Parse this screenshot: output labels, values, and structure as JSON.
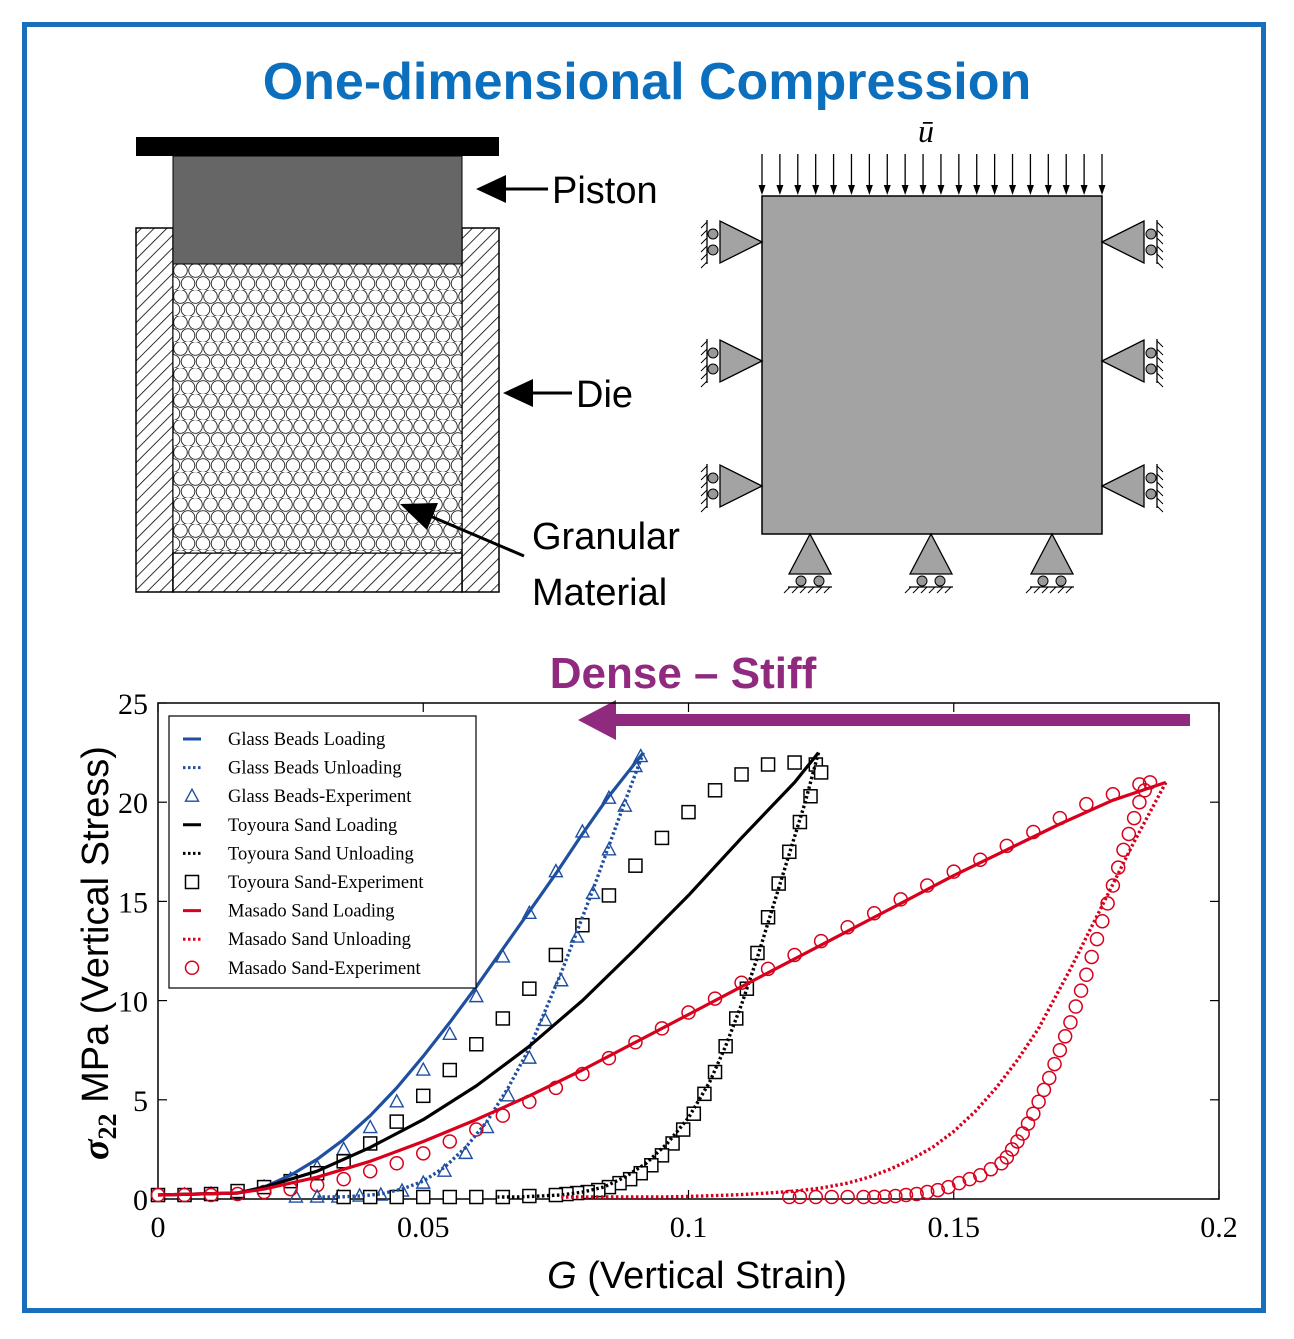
{
  "title": "One-dimensional Compression",
  "diagram_left": {
    "labels": {
      "piston": "Piston",
      "die": "Die",
      "granular_1": "Granular",
      "granular_2": "Material"
    }
  },
  "diagram_right": {
    "load_symbol": "ū"
  },
  "annotation": {
    "text": "Dense – Stiff",
    "color": "#8f2a7f"
  },
  "colors": {
    "blue": "#1f4fa0",
    "black": "#000000",
    "red": "#d8001c"
  },
  "chart_data": {
    "type": "line",
    "xlabel_symbol": "G",
    "xlabel_text": "(Vertical Strain)",
    "ylabel_symbol": "σ",
    "ylabel_subscript": "22",
    "ylabel_text": "MPa (Vertical Stress)",
    "xlim": [
      0,
      0.2
    ],
    "ylim": [
      0,
      25
    ],
    "xticks": [
      0,
      0.05,
      0.1,
      0.15,
      0.2
    ],
    "xtick_labels": [
      "0",
      "0.05",
      "0.1",
      "0.15",
      "0.2"
    ],
    "yticks": [
      0,
      5,
      10,
      15,
      20,
      25
    ],
    "ytick_labels": [
      "0",
      "5",
      "10",
      "15",
      "20",
      "25"
    ],
    "legend": [
      {
        "label": "Glass Beads Loading",
        "color": "#1f4fa0",
        "style": "solid"
      },
      {
        "label": "Glass Beads Unloading",
        "color": "#1f4fa0",
        "style": "dotted"
      },
      {
        "label": "Glass Beads-Experiment",
        "color": "#1f4fa0",
        "style": "triangle"
      },
      {
        "label": "Toyoura Sand Loading",
        "color": "#000000",
        "style": "solid"
      },
      {
        "label": "Toyoura Sand Unloading",
        "color": "#000000",
        "style": "dotted"
      },
      {
        "label": "Toyoura Sand-Experiment",
        "color": "#000000",
        "style": "square"
      },
      {
        "label": "Masado Sand Loading",
        "color": "#d8001c",
        "style": "solid"
      },
      {
        "label": "Masado Sand Unloading",
        "color": "#d8001c",
        "style": "dotted"
      },
      {
        "label": "Masado Sand-Experiment",
        "color": "#d8001c",
        "style": "circle"
      }
    ],
    "series": [
      {
        "name": "Glass Beads Loading",
        "color": "#1f4fa0",
        "style": "solid",
        "x": [
          0.0,
          0.015,
          0.02,
          0.025,
          0.03,
          0.035,
          0.04,
          0.045,
          0.05,
          0.055,
          0.06,
          0.065,
          0.07,
          0.075,
          0.08,
          0.085,
          0.0915
        ],
        "y": [
          0.2,
          0.3,
          0.6,
          1.2,
          2.0,
          3.0,
          4.2,
          5.6,
          7.2,
          8.9,
          10.7,
          12.6,
          14.5,
          16.4,
          18.4,
          20.3,
          22.5
        ]
      },
      {
        "name": "Glass Beads Unloading",
        "color": "#1f4fa0",
        "style": "dotted",
        "x": [
          0.0915,
          0.088,
          0.085,
          0.082,
          0.079,
          0.076,
          0.073,
          0.07,
          0.066,
          0.062,
          0.058,
          0.054,
          0.05,
          0.046,
          0.042,
          0.038,
          0.034,
          0.03
        ],
        "y": [
          22.5,
          20.0,
          17.8,
          15.6,
          13.5,
          11.4,
          9.5,
          7.6,
          5.6,
          3.9,
          2.6,
          1.6,
          0.9,
          0.5,
          0.25,
          0.15,
          0.1,
          0.1
        ]
      },
      {
        "name": "Glass Beads-Experiment",
        "color": "#1f4fa0",
        "style": "triangle",
        "x": [
          0.0,
          0.005,
          0.01,
          0.015,
          0.02,
          0.025,
          0.03,
          0.035,
          0.04,
          0.045,
          0.05,
          0.055,
          0.06,
          0.065,
          0.07,
          0.075,
          0.08,
          0.085,
          0.09,
          0.091,
          0.088,
          0.085,
          0.082,
          0.079,
          0.076,
          0.073,
          0.07,
          0.066,
          0.062,
          0.058,
          0.054,
          0.05,
          0.046,
          0.042,
          0.038,
          0.034,
          0.03,
          0.026
        ],
        "y": [
          0.2,
          0.2,
          0.25,
          0.35,
          0.6,
          1.0,
          1.6,
          2.5,
          3.6,
          4.9,
          6.5,
          8.3,
          10.2,
          12.2,
          14.4,
          16.5,
          18.5,
          20.2,
          21.8,
          22.3,
          19.8,
          17.6,
          15.4,
          13.2,
          11.0,
          9.0,
          7.1,
          5.2,
          3.6,
          2.3,
          1.4,
          0.8,
          0.4,
          0.2,
          0.15,
          0.1,
          0.1,
          0.1
        ]
      },
      {
        "name": "Toyoura Sand Loading",
        "color": "#000000",
        "style": "solid",
        "x": [
          0.0,
          0.015,
          0.02,
          0.03,
          0.04,
          0.05,
          0.06,
          0.07,
          0.08,
          0.09,
          0.1,
          0.11,
          0.12,
          0.1245
        ],
        "y": [
          0.2,
          0.3,
          0.6,
          1.4,
          2.6,
          4.0,
          5.7,
          7.7,
          10.0,
          12.6,
          15.3,
          18.2,
          21.0,
          22.5
        ]
      },
      {
        "name": "Toyoura Sand Unloading",
        "color": "#000000",
        "style": "dotted",
        "x": [
          0.1245,
          0.122,
          0.119,
          0.116,
          0.113,
          0.11,
          0.107,
          0.104,
          0.1,
          0.096,
          0.092,
          0.088,
          0.084,
          0.08,
          0.076,
          0.072,
          0.068,
          0.064
        ],
        "y": [
          22.5,
          20.0,
          17.4,
          14.8,
          12.2,
          9.8,
          7.7,
          5.9,
          4.1,
          2.8,
          1.8,
          1.1,
          0.6,
          0.35,
          0.2,
          0.15,
          0.1,
          0.1
        ]
      },
      {
        "name": "Toyoura Sand-Experiment",
        "color": "#000000",
        "style": "square",
        "x": [
          0.0,
          0.005,
          0.01,
          0.015,
          0.02,
          0.025,
          0.03,
          0.035,
          0.04,
          0.045,
          0.05,
          0.055,
          0.06,
          0.065,
          0.07,
          0.075,
          0.08,
          0.085,
          0.09,
          0.095,
          0.1,
          0.105,
          0.11,
          0.115,
          0.12,
          0.124,
          0.125,
          0.123,
          0.121,
          0.119,
          0.117,
          0.115,
          0.113,
          0.111,
          0.109,
          0.107,
          0.105,
          0.103,
          0.101,
          0.099,
          0.097,
          0.095,
          0.093,
          0.091,
          0.089,
          0.087,
          0.085,
          0.083,
          0.081,
          0.079,
          0.077,
          0.075,
          0.07,
          0.065,
          0.06,
          0.055,
          0.05,
          0.045,
          0.04,
          0.035
        ],
        "y": [
          0.2,
          0.2,
          0.25,
          0.4,
          0.6,
          0.9,
          1.3,
          1.9,
          2.8,
          3.9,
          5.2,
          6.5,
          7.8,
          9.1,
          10.6,
          12.3,
          13.8,
          15.3,
          16.8,
          18.2,
          19.5,
          20.6,
          21.4,
          21.9,
          22.0,
          21.9,
          21.5,
          20.3,
          19.0,
          17.5,
          15.9,
          14.2,
          12.4,
          10.6,
          9.1,
          7.7,
          6.4,
          5.3,
          4.3,
          3.5,
          2.8,
          2.2,
          1.7,
          1.3,
          1.0,
          0.8,
          0.6,
          0.45,
          0.35,
          0.3,
          0.25,
          0.2,
          0.15,
          0.1,
          0.1,
          0.1,
          0.1,
          0.1,
          0.1,
          0.1
        ]
      },
      {
        "name": "Masado Sand Loading",
        "color": "#d8001c",
        "style": "solid",
        "x": [
          0.0,
          0.015,
          0.02,
          0.03,
          0.04,
          0.05,
          0.06,
          0.07,
          0.08,
          0.09,
          0.1,
          0.11,
          0.12,
          0.13,
          0.14,
          0.15,
          0.16,
          0.17,
          0.18,
          0.19
        ],
        "y": [
          0.2,
          0.3,
          0.5,
          1.1,
          1.9,
          2.9,
          4.0,
          5.2,
          6.5,
          7.9,
          9.3,
          10.7,
          12.1,
          13.5,
          14.9,
          16.3,
          17.6,
          18.9,
          20.1,
          21.0
        ]
      },
      {
        "name": "Masado Sand Unloading",
        "color": "#d8001c",
        "style": "dotted",
        "x": [
          0.19,
          0.187,
          0.184,
          0.181,
          0.178,
          0.175,
          0.172,
          0.169,
          0.166,
          0.162,
          0.158,
          0.154,
          0.15,
          0.146,
          0.142,
          0.138,
          0.134,
          0.13,
          0.125,
          0.12,
          0.115,
          0.11,
          0.105,
          0.1,
          0.095,
          0.09,
          0.085,
          0.08,
          0.076
        ],
        "y": [
          21.0,
          19.5,
          18.0,
          16.4,
          14.8,
          13.2,
          11.6,
          10.1,
          8.6,
          7.0,
          5.6,
          4.4,
          3.4,
          2.6,
          2.0,
          1.5,
          1.1,
          0.8,
          0.55,
          0.4,
          0.3,
          0.22,
          0.17,
          0.13,
          0.1,
          0.1,
          0.1,
          0.1,
          0.1
        ]
      },
      {
        "name": "Masado Sand-Experiment",
        "color": "#d8001c",
        "style": "circle",
        "x": [
          0.0,
          0.005,
          0.01,
          0.015,
          0.02,
          0.025,
          0.03,
          0.035,
          0.04,
          0.045,
          0.05,
          0.055,
          0.06,
          0.065,
          0.07,
          0.075,
          0.08,
          0.085,
          0.09,
          0.095,
          0.1,
          0.105,
          0.11,
          0.115,
          0.12,
          0.125,
          0.13,
          0.135,
          0.14,
          0.145,
          0.15,
          0.155,
          0.16,
          0.165,
          0.17,
          0.175,
          0.18,
          0.185,
          0.187,
          0.186,
          0.185,
          0.184,
          0.183,
          0.182,
          0.181,
          0.18,
          0.179,
          0.178,
          0.177,
          0.176,
          0.175,
          0.174,
          0.173,
          0.172,
          0.171,
          0.17,
          0.169,
          0.168,
          0.167,
          0.166,
          0.165,
          0.164,
          0.163,
          0.162,
          0.161,
          0.16,
          0.159,
          0.157,
          0.155,
          0.153,
          0.151,
          0.149,
          0.147,
          0.145,
          0.143,
          0.141,
          0.139,
          0.137,
          0.135,
          0.133,
          0.13,
          0.127,
          0.124,
          0.121,
          0.119
        ],
        "y": [
          0.2,
          0.2,
          0.2,
          0.25,
          0.35,
          0.5,
          0.7,
          1.0,
          1.4,
          1.8,
          2.3,
          2.9,
          3.5,
          4.2,
          4.9,
          5.6,
          6.3,
          7.1,
          7.9,
          8.6,
          9.4,
          10.1,
          10.9,
          11.6,
          12.3,
          13.0,
          13.7,
          14.4,
          15.1,
          15.8,
          16.5,
          17.1,
          17.8,
          18.5,
          19.2,
          19.9,
          20.4,
          20.9,
          21.0,
          20.6,
          20.0,
          19.2,
          18.4,
          17.6,
          16.7,
          15.8,
          14.9,
          14.0,
          13.1,
          12.2,
          11.3,
          10.5,
          9.7,
          8.9,
          8.2,
          7.5,
          6.8,
          6.1,
          5.5,
          4.9,
          4.3,
          3.8,
          3.3,
          2.9,
          2.5,
          2.1,
          1.8,
          1.5,
          1.2,
          1.0,
          0.8,
          0.6,
          0.45,
          0.35,
          0.25,
          0.2,
          0.15,
          0.12,
          0.1,
          0.1,
          0.1,
          0.1,
          0.1,
          0.1,
          0.1
        ]
      }
    ]
  }
}
